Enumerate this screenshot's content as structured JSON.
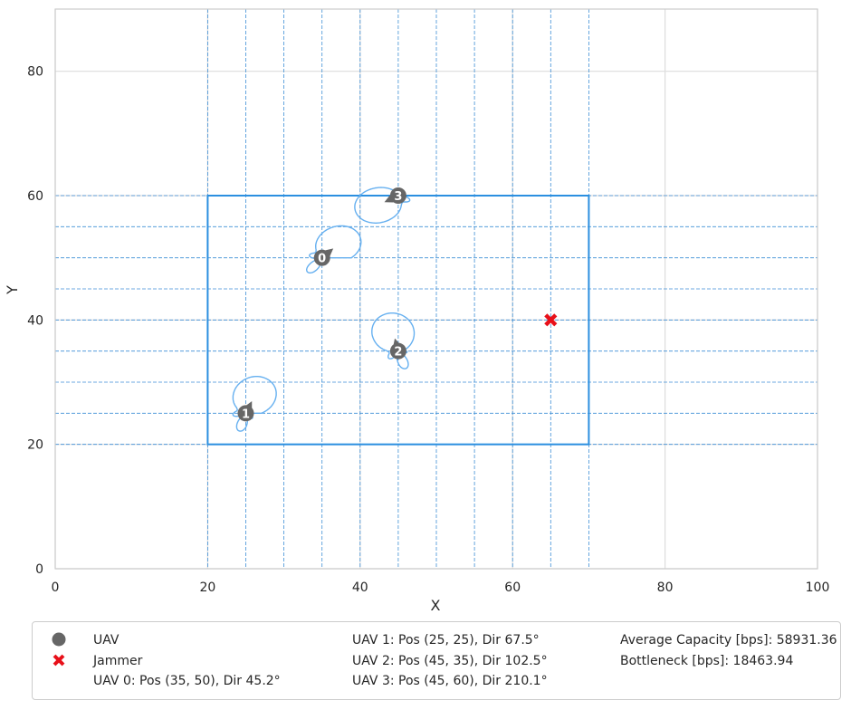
{
  "chart_data": {
    "type": "scatter",
    "xlabel": "X",
    "ylabel": "Y",
    "xlim": [
      0,
      100
    ],
    "ylim": [
      0,
      90
    ],
    "x_ticks": [
      0,
      20,
      40,
      60,
      80,
      100
    ],
    "y_ticks": [
      0,
      20,
      40,
      60,
      80
    ],
    "grid": true,
    "area": {
      "x": [
        20,
        70
      ],
      "y": [
        20,
        60
      ]
    },
    "grid_x_lines": [
      20,
      25,
      30,
      35,
      40,
      45,
      50,
      55,
      60,
      65,
      70
    ],
    "grid_y_lines": [
      20,
      25,
      30,
      35,
      40,
      45,
      50,
      55,
      60
    ],
    "uavs": [
      {
        "id": "0",
        "x": 35,
        "y": 50,
        "dir": 45.2
      },
      {
        "id": "1",
        "x": 25,
        "y": 25,
        "dir": 67.5
      },
      {
        "id": "2",
        "x": 45,
        "y": 35,
        "dir": 102.5
      },
      {
        "id": "3",
        "x": 45,
        "y": 60,
        "dir": 210.1
      }
    ],
    "jammer": {
      "x": 65,
      "y": 40
    },
    "colors": {
      "uav": "#666666",
      "jammer": "#e8101a",
      "area": "#2b8fe0",
      "grid": "#3f8fd6",
      "pattern": "#66b0f0",
      "axis_grid": "#dddddd"
    }
  },
  "legend": {
    "uav_label": "UAV",
    "jammer_label": "Jammer",
    "uav0": "UAV 0: Pos (35, 50), Dir 45.2°",
    "uav1": "UAV 1: Pos (25, 25), Dir 67.5°",
    "uav2": "UAV 2: Pos (45, 35), Dir 102.5°",
    "uav3": "UAV 3: Pos (45, 60), Dir 210.1°",
    "avg_capacity": "Average Capacity [bps]: 58931.36",
    "bottleneck": "Bottleneck [bps]: 18463.94"
  }
}
